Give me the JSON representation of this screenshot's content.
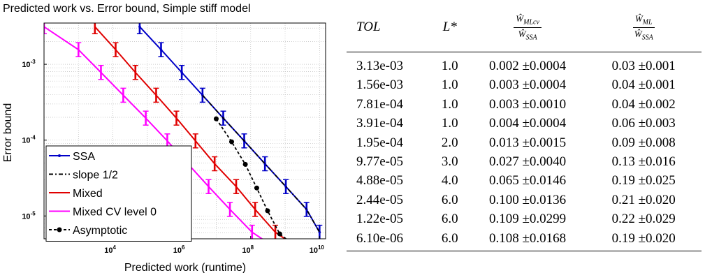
{
  "chart_data": {
    "type": "line",
    "title": "Predicted work vs. Error bound, Simple stiff model",
    "xlabel": "Predicted work (runtime)",
    "ylabel": "Error bound",
    "xscale": "log",
    "yscale": "log",
    "xlim": [
      100,
      15000000000
    ],
    "ylim": [
      5e-06,
      0.0035
    ],
    "grid": true,
    "legend_position": "bottom-left",
    "x_ticks": [
      {
        "value": 10000,
        "base": "10",
        "exp": "4"
      },
      {
        "value": 1000000,
        "base": "10",
        "exp": "6"
      },
      {
        "value": 100000000,
        "base": "10",
        "exp": "8"
      },
      {
        "value": 10000000000,
        "base": "10",
        "exp": "10"
      }
    ],
    "y_ticks": [
      {
        "value": 0.001,
        "base": "10",
        "exp": "-3"
      },
      {
        "value": 0.0001,
        "base": "10",
        "exp": "-4"
      },
      {
        "value": 1e-05,
        "base": "10",
        "exp": "-5"
      }
    ],
    "series": [
      {
        "name": "SSA",
        "color": "#0000c8",
        "dash": "",
        "marker": "dot",
        "errorbars": true,
        "x": [
          60000,
          250000,
          1000000,
          4000000,
          16000000,
          65000000,
          260000000,
          1050000000,
          4200000000,
          10000000000
        ],
        "y": [
          0.00313,
          0.00156,
          0.000781,
          0.000391,
          0.000195,
          9.77e-05,
          4.88e-05,
          2.44e-05,
          1.22e-05,
          6.1e-06
        ]
      },
      {
        "name": "slope 1/2",
        "color": "#000000",
        "dash": "6,3,2,3",
        "marker": "none",
        "errorbars": false,
        "x": [
          4000000,
          16000000,
          65000000,
          260000000,
          1050000000,
          4200000000,
          10000000000
        ],
        "y": [
          0.000391,
          0.000195,
          9.77e-05,
          4.88e-05,
          2.44e-05,
          1.22e-05,
          6.1e-06
        ]
      },
      {
        "name": "Mixed",
        "color": "#e00000",
        "dash": "",
        "marker": "none",
        "errorbars": true,
        "x": [
          3000,
          12000,
          45000,
          180000,
          700000,
          2500000,
          9000000,
          38000000,
          135000000,
          520000000,
          2000000000
        ],
        "y": [
          0.00313,
          0.00156,
          0.000781,
          0.000391,
          0.000195,
          9.77e-05,
          4.88e-05,
          2.44e-05,
          1.22e-05,
          6.1e-06,
          4e-06
        ]
      },
      {
        "name": "Mixed CV level 0",
        "color": "#ff00ff",
        "dash": "",
        "marker": "none",
        "errorbars": true,
        "x": [
          100,
          1000,
          4500,
          20000,
          90000,
          380000,
          1500000,
          6000000,
          25000000,
          110000000,
          450000000
        ],
        "y": [
          0.00313,
          0.00156,
          0.000781,
          0.000391,
          0.000195,
          9.77e-05,
          4.88e-05,
          2.44e-05,
          1.22e-05,
          6.1e-06,
          4e-06
        ]
      },
      {
        "name": "Asymptotic",
        "color": "#000000",
        "dash": "4,3",
        "marker": "dot",
        "errorbars": false,
        "x": [
          10000000,
          28000000,
          70000000,
          150000000,
          310000000,
          700000000,
          2000000000
        ],
        "y": [
          0.000191,
          9.51e-05,
          4.79e-05,
          2.34e-05,
          1.17e-05,
          5.8e-06,
          4e-06
        ]
      }
    ]
  },
  "table": {
    "headers": {
      "tol": "TOL",
      "lstar": "L*",
      "ratio_cv_num": "Ŵ",
      "ratio_cv_num_sub": "MLcv",
      "ratio_ml_num": "Ŵ",
      "ratio_ml_num_sub": "ML",
      "den": "Ŵ",
      "den_sub": "SSA"
    },
    "rows": [
      {
        "tol": "3.13e-03",
        "lstar": "1.0",
        "cv": "0.002 ±0.0004",
        "ml": "0.03 ±0.001"
      },
      {
        "tol": "1.56e-03",
        "lstar": "1.0",
        "cv": "0.003 ±0.0004",
        "ml": "0.04 ±0.001"
      },
      {
        "tol": "7.81e-04",
        "lstar": "1.0",
        "cv": "0.003 ±0.0010",
        "ml": "0.04 ±0.002"
      },
      {
        "tol": "3.91e-04",
        "lstar": "1.0",
        "cv": "0.004 ±0.0004",
        "ml": "0.06 ±0.003"
      },
      {
        "tol": "1.95e-04",
        "lstar": "2.0",
        "cv": "0.013 ±0.0015",
        "ml": "0.09 ±0.008"
      },
      {
        "tol": "9.77e-05",
        "lstar": "3.0",
        "cv": "0.027 ±0.0040",
        "ml": "0.13 ±0.016"
      },
      {
        "tol": "4.88e-05",
        "lstar": "4.0",
        "cv": "0.065 ±0.0146",
        "ml": "0.19 ±0.025"
      },
      {
        "tol": "2.44e-05",
        "lstar": "6.0",
        "cv": "0.100 ±0.0136",
        "ml": "0.21 ±0.020"
      },
      {
        "tol": "1.22e-05",
        "lstar": "6.0",
        "cv": "0.109 ±0.0299",
        "ml": "0.22 ±0.029"
      },
      {
        "tol": "6.10e-06",
        "lstar": "6.0",
        "cv": "0.108 ±0.0168",
        "ml": "0.19 ±0.020"
      }
    ]
  }
}
